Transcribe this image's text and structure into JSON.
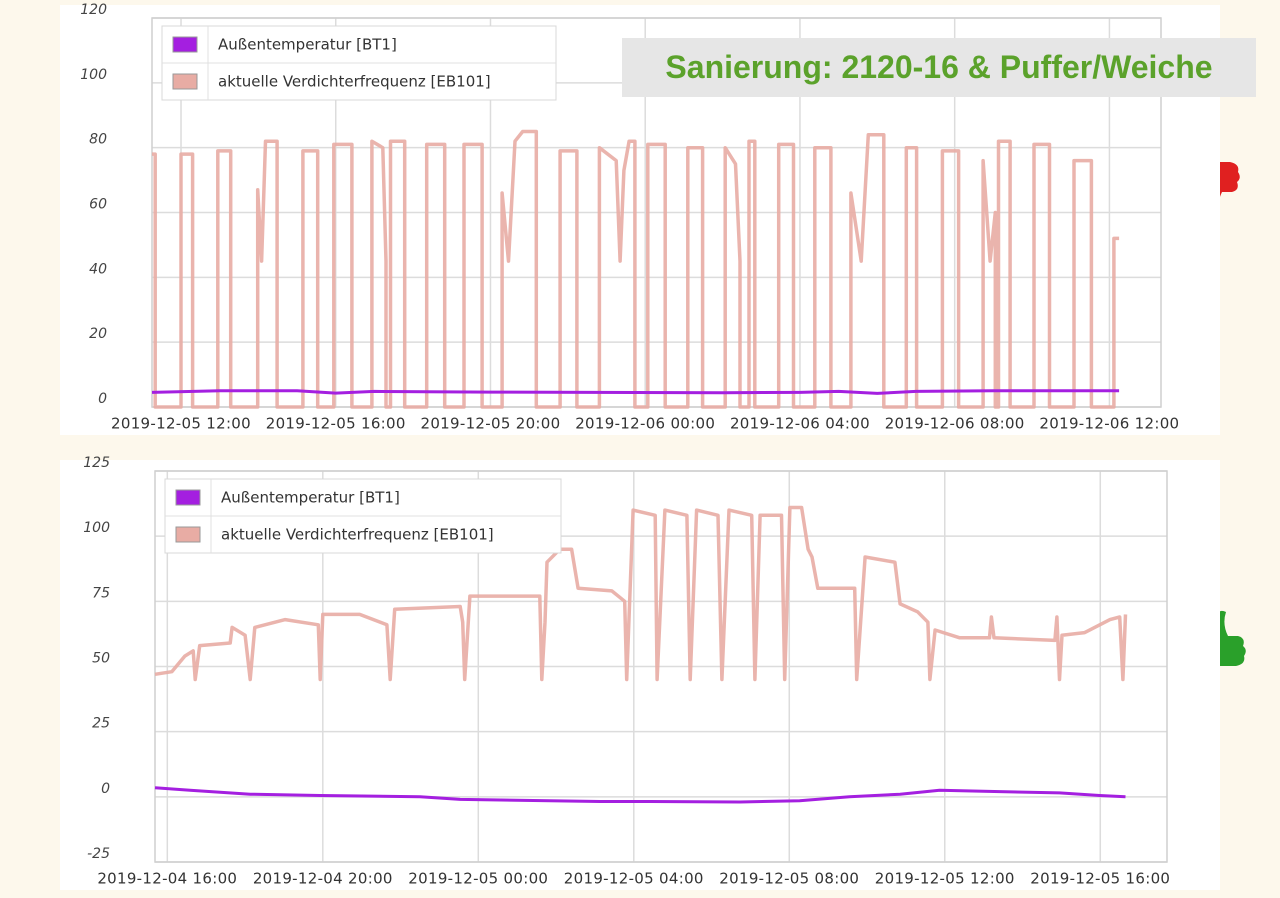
{
  "chart_data": [
    {
      "type": "line",
      "annotation": "Sanierung: 2120-16 & Puffer/Weiche",
      "xlim": [
        "2019-12-05 11:15",
        "2019-12-06 13:20"
      ],
      "xticks": [
        "2019-12-05 12:00",
        "2019-12-05 16:00",
        "2019-12-05 20:00",
        "2019-12-06 00:00",
        "2019-12-06 04:00",
        "2019-12-06 08:00",
        "2019-12-06 12:00"
      ],
      "ylim": [
        0,
        120
      ],
      "yticks": [
        0,
        20,
        40,
        60,
        80,
        100,
        120
      ],
      "grid": true,
      "legend": "upper left",
      "series": [
        {
          "name": "Außentemperatur [BT1]",
          "color": "#a41fe0",
          "x": [
            "2019-12-05 11:15",
            "2019-12-05 13:00",
            "2019-12-05 15:00",
            "2019-12-05 16:00",
            "2019-12-05 17:00",
            "2019-12-05 20:00",
            "2019-12-06 02:00",
            "2019-12-06 04:00",
            "2019-12-06 05:00",
            "2019-12-06 06:00",
            "2019-12-06 07:00",
            "2019-12-06 09:00",
            "2019-12-06 12:15"
          ],
          "values": [
            4.5,
            5,
            5,
            4.3,
            4.8,
            4.6,
            4.4,
            4.5,
            4.8,
            4.2,
            4.8,
            5,
            5
          ]
        },
        {
          "name": "aktuelle Verdichterfrequenz [EB101]",
          "color": "#e8aca4",
          "x": [
            "2019-12-05 11:15",
            "2019-12-05 11:20",
            "2019-12-05 11:20",
            "2019-12-05 12:00",
            "2019-12-05 12:00",
            "2019-12-05 12:18",
            "2019-12-05 12:18",
            "2019-12-05 12:57",
            "2019-12-05 12:57",
            "2019-12-05 13:17",
            "2019-12-05 13:17",
            "2019-12-05 13:59",
            "2019-12-05 13:59",
            "2019-12-05 14:05",
            "2019-12-05 14:11",
            "2019-12-05 14:29",
            "2019-12-05 14:29",
            "2019-12-05 15:09",
            "2019-12-05 15:09",
            "2019-12-05 15:32",
            "2019-12-05 15:32",
            "2019-12-05 15:57",
            "2019-12-05 15:57",
            "2019-12-05 16:25",
            "2019-12-05 16:25",
            "2019-12-05 16:56",
            "2019-12-05 16:56",
            "2019-12-05 17:13",
            "2019-12-05 17:18",
            "2019-12-05 17:18",
            "2019-12-05 17:25",
            "2019-12-05 17:25",
            "2019-12-05 17:47",
            "2019-12-05 17:47",
            "2019-12-05 18:21",
            "2019-12-05 18:21",
            "2019-12-05 18:49",
            "2019-12-05 18:49",
            "2019-12-05 19:19",
            "2019-12-05 19:19",
            "2019-12-05 19:47",
            "2019-12-05 19:47",
            "2019-12-05 20:18",
            "2019-12-05 20:18",
            "2019-12-05 20:28",
            "2019-12-05 20:38",
            "2019-12-05 20:50",
            "2019-12-05 21:11",
            "2019-12-05 21:11",
            "2019-12-05 21:48",
            "2019-12-05 21:48",
            "2019-12-05 22:14",
            "2019-12-05 22:14",
            "2019-12-05 22:49",
            "2019-12-05 22:49",
            "2019-12-05 23:15",
            "2019-12-05 23:21",
            "2019-12-05 23:27",
            "2019-12-05 23:35",
            "2019-12-05 23:44",
            "2019-12-05 23:44",
            "2019-12-06 00:04",
            "2019-12-06 00:04",
            "2019-12-06 00:31",
            "2019-12-06 00:31",
            "2019-12-06 01:06",
            "2019-12-06 01:06",
            "2019-12-06 01:29",
            "2019-12-06 01:29",
            "2019-12-06 02:04",
            "2019-12-06 02:04",
            "2019-12-06 02:20",
            "2019-12-06 02:27",
            "2019-12-06 02:27",
            "2019-12-06 02:41",
            "2019-12-06 02:41",
            "2019-12-06 02:50",
            "2019-12-06 02:50",
            "2019-12-06 03:27",
            "2019-12-06 03:27",
            "2019-12-06 03:50",
            "2019-12-06 03:50",
            "2019-12-06 04:23",
            "2019-12-06 04:23",
            "2019-12-06 04:48",
            "2019-12-06 04:48",
            "2019-12-06 05:19",
            "2019-12-06 05:19",
            "2019-12-06 05:35",
            "2019-12-06 05:46",
            "2019-12-06 06:10",
            "2019-12-06 06:10",
            "2019-12-06 06:45",
            "2019-12-06 06:45",
            "2019-12-06 07:01",
            "2019-12-06 07:01",
            "2019-12-06 07:41",
            "2019-12-06 07:41",
            "2019-12-06 08:06",
            "2019-12-06 08:06",
            "2019-12-06 08:44",
            "2019-12-06 08:44",
            "2019-12-06 08:55",
            "2019-12-06 09:03",
            "2019-12-06 09:03",
            "2019-12-06 09:08",
            "2019-12-06 09:08",
            "2019-12-06 09:26",
            "2019-12-06 09:26",
            "2019-12-06 10:03",
            "2019-12-06 10:03",
            "2019-12-06 10:27",
            "2019-12-06 10:27",
            "2019-12-06 11:05",
            "2019-12-06 11:05",
            "2019-12-06 11:32",
            "2019-12-06 11:32",
            "2019-12-06 12:07",
            "2019-12-06 12:07",
            "2019-12-06 12:15"
          ],
          "values": [
            78,
            78,
            0,
            0,
            78,
            78,
            0,
            0,
            79,
            79,
            0,
            0,
            67,
            45,
            82,
            82,
            0,
            0,
            79,
            79,
            0,
            0,
            81,
            81,
            0,
            0,
            82,
            80,
            45,
            0,
            0,
            82,
            82,
            0,
            0,
            81,
            81,
            0,
            0,
            81,
            81,
            0,
            0,
            66,
            45,
            82,
            85,
            85,
            0,
            0,
            79,
            79,
            0,
            0,
            80,
            76,
            45,
            73,
            82,
            82,
            0,
            0,
            81,
            81,
            0,
            0,
            80,
            80,
            0,
            0,
            80,
            75,
            45,
            0,
            0,
            82,
            82,
            0,
            0,
            81,
            81,
            0,
            0,
            80,
            80,
            0,
            0,
            66,
            45,
            84,
            84,
            0,
            0,
            80,
            80,
            0,
            0,
            79,
            79,
            0,
            0,
            76,
            45,
            60,
            0,
            0,
            82,
            82,
            0,
            0,
            81,
            81,
            0,
            0,
            76,
            76,
            0,
            0,
            52,
            52
          ]
        }
      ]
    },
    {
      "type": "line",
      "xlim": [
        "2019-12-04 15:41",
        "2019-12-05 17:43"
      ],
      "xticks": [
        "2019-12-04 16:00",
        "2019-12-04 20:00",
        "2019-12-05 00:00",
        "2019-12-05 04:00",
        "2019-12-05 08:00",
        "2019-12-05 12:00",
        "2019-12-05 16:00"
      ],
      "ylim": [
        -25,
        125
      ],
      "yticks": [
        -25,
        0,
        25,
        50,
        75,
        100,
        125
      ],
      "grid": true,
      "legend": "upper left",
      "series": [
        {
          "name": "Außentemperatur [BT1]",
          "color": "#a41fe0",
          "x": [
            "2019-12-04 15:41",
            "2019-12-04 16:35",
            "2019-12-04 18:08",
            "2019-12-04 19:56",
            "2019-12-04 22:30",
            "2019-12-04 23:32",
            "2019-12-05 03:08",
            "2019-12-05 04:25",
            "2019-12-05 06:44",
            "2019-12-05 08:16",
            "2019-12-05 09:33",
            "2019-12-05 10:51",
            "2019-12-05 11:52",
            "2019-12-05 13:25",
            "2019-12-05 14:57",
            "2019-12-05 15:59",
            "2019-12-05 16:39"
          ],
          "values": [
            3.5,
            2.5,
            1,
            0.5,
            0,
            -1,
            -1.8,
            -1.8,
            -2,
            -1.5,
            0,
            1,
            2.5,
            2,
            1.5,
            0.5,
            0
          ]
        },
        {
          "name": "aktuelle Verdichterfrequenz [EB101]",
          "color": "#e8aca4",
          "x": [
            "2019-12-04 15:41",
            "2019-12-04 16:07",
            "2019-12-04 16:27",
            "2019-12-04 16:40",
            "2019-12-04 16:43",
            "2019-12-04 16:50",
            "2019-12-04 17:37",
            "2019-12-04 17:40",
            "2019-12-04 18:00",
            "2019-12-04 18:08",
            "2019-12-04 18:15",
            "2019-12-04 19:02",
            "2019-12-04 19:53",
            "2019-12-04 19:56",
            "2019-12-04 20:00",
            "2019-12-04 20:57",
            "2019-12-04 21:39",
            "2019-12-04 21:44",
            "2019-12-04 21:51",
            "2019-12-04 23:32",
            "2019-12-04 23:36",
            "2019-12-04 23:39",
            "2019-12-04 23:47",
            "2019-12-05 01:35",
            "2019-12-05 01:38",
            "2019-12-05 01:43",
            "2019-12-05 01:46",
            "2019-12-05 02:06",
            "2019-12-05 02:24",
            "2019-12-05 02:34",
            "2019-12-05 03:26",
            "2019-12-05 03:46",
            "2019-12-05 03:49",
            "2019-12-05 03:59",
            "2019-12-05 04:33",
            "2019-12-05 04:36",
            "2019-12-05 04:48",
            "2019-12-05 05:22",
            "2019-12-05 05:27",
            "2019-12-05 05:37",
            "2019-12-05 06:10",
            "2019-12-05 06:16",
            "2019-12-05 06:27",
            "2019-12-05 07:02",
            "2019-12-05 07:07",
            "2019-12-05 07:15",
            "2019-12-05 07:48",
            "2019-12-05 07:53",
            "2019-12-05 08:01",
            "2019-12-05 08:19",
            "2019-12-05 08:29",
            "2019-12-05 08:35",
            "2019-12-05 08:44",
            "2019-12-05 09:41",
            "2019-12-05 09:44",
            "2019-12-05 09:57",
            "2019-12-05 10:43",
            "2019-12-05 10:51",
            "2019-12-05 11:18",
            "2019-12-05 11:34",
            "2019-12-05 11:37",
            "2019-12-05 11:45",
            "2019-12-05 12:23",
            "2019-12-05 13:09",
            "2019-12-05 13:12",
            "2019-12-05 13:16",
            "2019-12-05 14:50",
            "2019-12-05 14:53",
            "2019-12-05 14:57",
            "2019-12-05 15:01",
            "2019-12-05 15:36",
            "2019-12-05 16:15",
            "2019-12-05 16:30",
            "2019-12-05 16:35",
            "2019-12-05 16:39"
          ],
          "values": [
            47,
            48,
            54,
            56,
            45,
            58,
            59,
            65,
            62,
            45,
            65,
            68,
            66,
            45,
            70,
            70,
            66,
            45,
            72,
            73,
            67,
            45,
            77,
            77,
            45,
            67,
            90,
            95,
            95,
            80,
            79,
            75,
            45,
            110,
            108,
            45,
            110,
            108,
            45,
            110,
            108,
            45,
            110,
            108,
            45,
            108,
            108,
            45,
            111,
            111,
            95,
            92,
            80,
            80,
            45,
            92,
            90,
            74,
            71,
            67,
            45,
            64,
            61,
            61,
            69,
            61,
            60,
            69,
            45,
            62,
            63,
            68,
            69,
            45,
            70
          ]
        }
      ]
    }
  ]
}
